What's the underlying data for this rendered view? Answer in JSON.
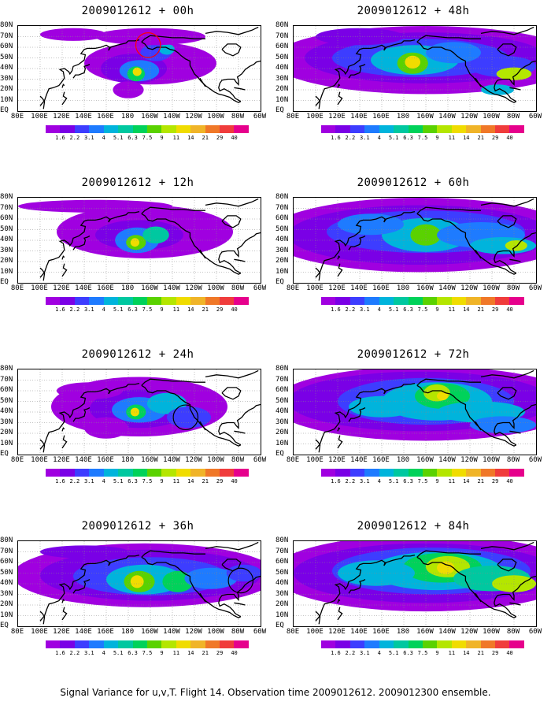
{
  "panels": [
    {
      "title": "2009012612 + 00h"
    },
    {
      "title": "2009012612 + 48h"
    },
    {
      "title": "2009012612 + 12h"
    },
    {
      "title": "2009012612 + 60h"
    },
    {
      "title": "2009012612 + 24h"
    },
    {
      "title": "2009012612 + 72h"
    },
    {
      "title": "2009012612 + 36h"
    },
    {
      "title": "2009012612 + 84h"
    }
  ],
  "lat_labels": [
    "80N",
    "70N",
    "60N",
    "50N",
    "40N",
    "30N",
    "20N",
    "10N",
    "EQ"
  ],
  "lon_labels": [
    "80E",
    "100E",
    "120E",
    "140E",
    "160E",
    "180",
    "160W",
    "140W",
    "120W",
    "100W",
    "80W",
    "60W"
  ],
  "colorbar": {
    "labels": [
      "1.6",
      "2.2",
      "3.1",
      "4",
      "5.1",
      "6.3",
      "7.5",
      "9",
      "11",
      "14",
      "21",
      "29",
      "40"
    ],
    "colors": [
      "#a000e0",
      "#7a00e6",
      "#3d3dff",
      "#1e7bff",
      "#00b4dc",
      "#00c8a0",
      "#00d25a",
      "#5ad200",
      "#b4e600",
      "#f0dc00",
      "#f0b428",
      "#f07828",
      "#f03c3c",
      "#e6008c"
    ]
  },
  "caption": "Signal Variance for u,v,T. Flight 14. Observation time 2009012612. 2009012300 ensemble."
}
